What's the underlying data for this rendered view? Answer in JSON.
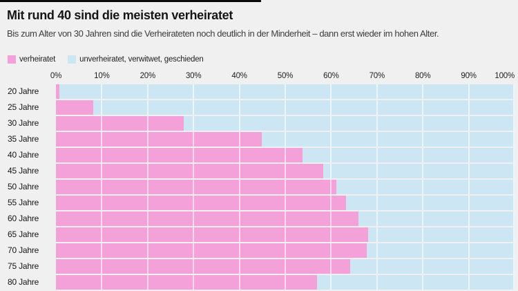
{
  "page": {
    "title": "Mit rund 40 sind die meisten verheiratet",
    "subtitle": "Bis zum Alter von 30 Jahren sind die Verheirateten noch deutlich in der Minderheit – dann erst wieder im hohen Alter."
  },
  "colors": {
    "background": "#f0f0f0",
    "accent_bar": "#0b0b0b",
    "married_pink": "#f5a1d9",
    "unmarried_blue": "#cce7f3",
    "gridline_white": "rgba(255,255,255,0.6)"
  },
  "legend": {
    "items": [
      {
        "label": "verheiratet",
        "color": "#f5a1d9"
      },
      {
        "label": "unverheiratet, verwitwet, geschieden",
        "color": "#cce7f3"
      }
    ]
  },
  "chart_data": {
    "type": "bar",
    "orientation": "horizontal",
    "stacked": true,
    "title": "Mit rund 40 sind die meisten verheiratet",
    "categories": [
      "20 Jahre",
      "25 Jahre",
      "30 Jahre",
      "35 Jahre",
      "40 Jahre",
      "45 Jahre",
      "50 Jahre",
      "55 Jahre",
      "60 Jahre",
      "65 Jahre",
      "70 Jahre",
      "75 Jahre",
      "80 Jahre"
    ],
    "series": [
      {
        "name": "verheiratet",
        "color": "#f5a1d9",
        "values": [
          0.8,
          8.1,
          27.8,
          44.9,
          53.8,
          58.3,
          61.2,
          63.2,
          66.0,
          68.0,
          67.7,
          64.2,
          57.0
        ]
      },
      {
        "name": "unverheiratet, verwitwet, geschieden",
        "color": "#cce7f3",
        "values": [
          99.2,
          91.9,
          72.2,
          55.1,
          46.2,
          41.7,
          38.8,
          36.8,
          34.0,
          32.0,
          32.3,
          35.8,
          43.0
        ]
      }
    ],
    "x_axis": {
      "min": 0,
      "max": 100,
      "unit": "%",
      "ticks": [
        "0%",
        "10%",
        "20%",
        "30%",
        "40%",
        "50%",
        "60%",
        "70%",
        "80%",
        "90%",
        "100%"
      ]
    },
    "grid": true,
    "legend_position": "top-left"
  }
}
